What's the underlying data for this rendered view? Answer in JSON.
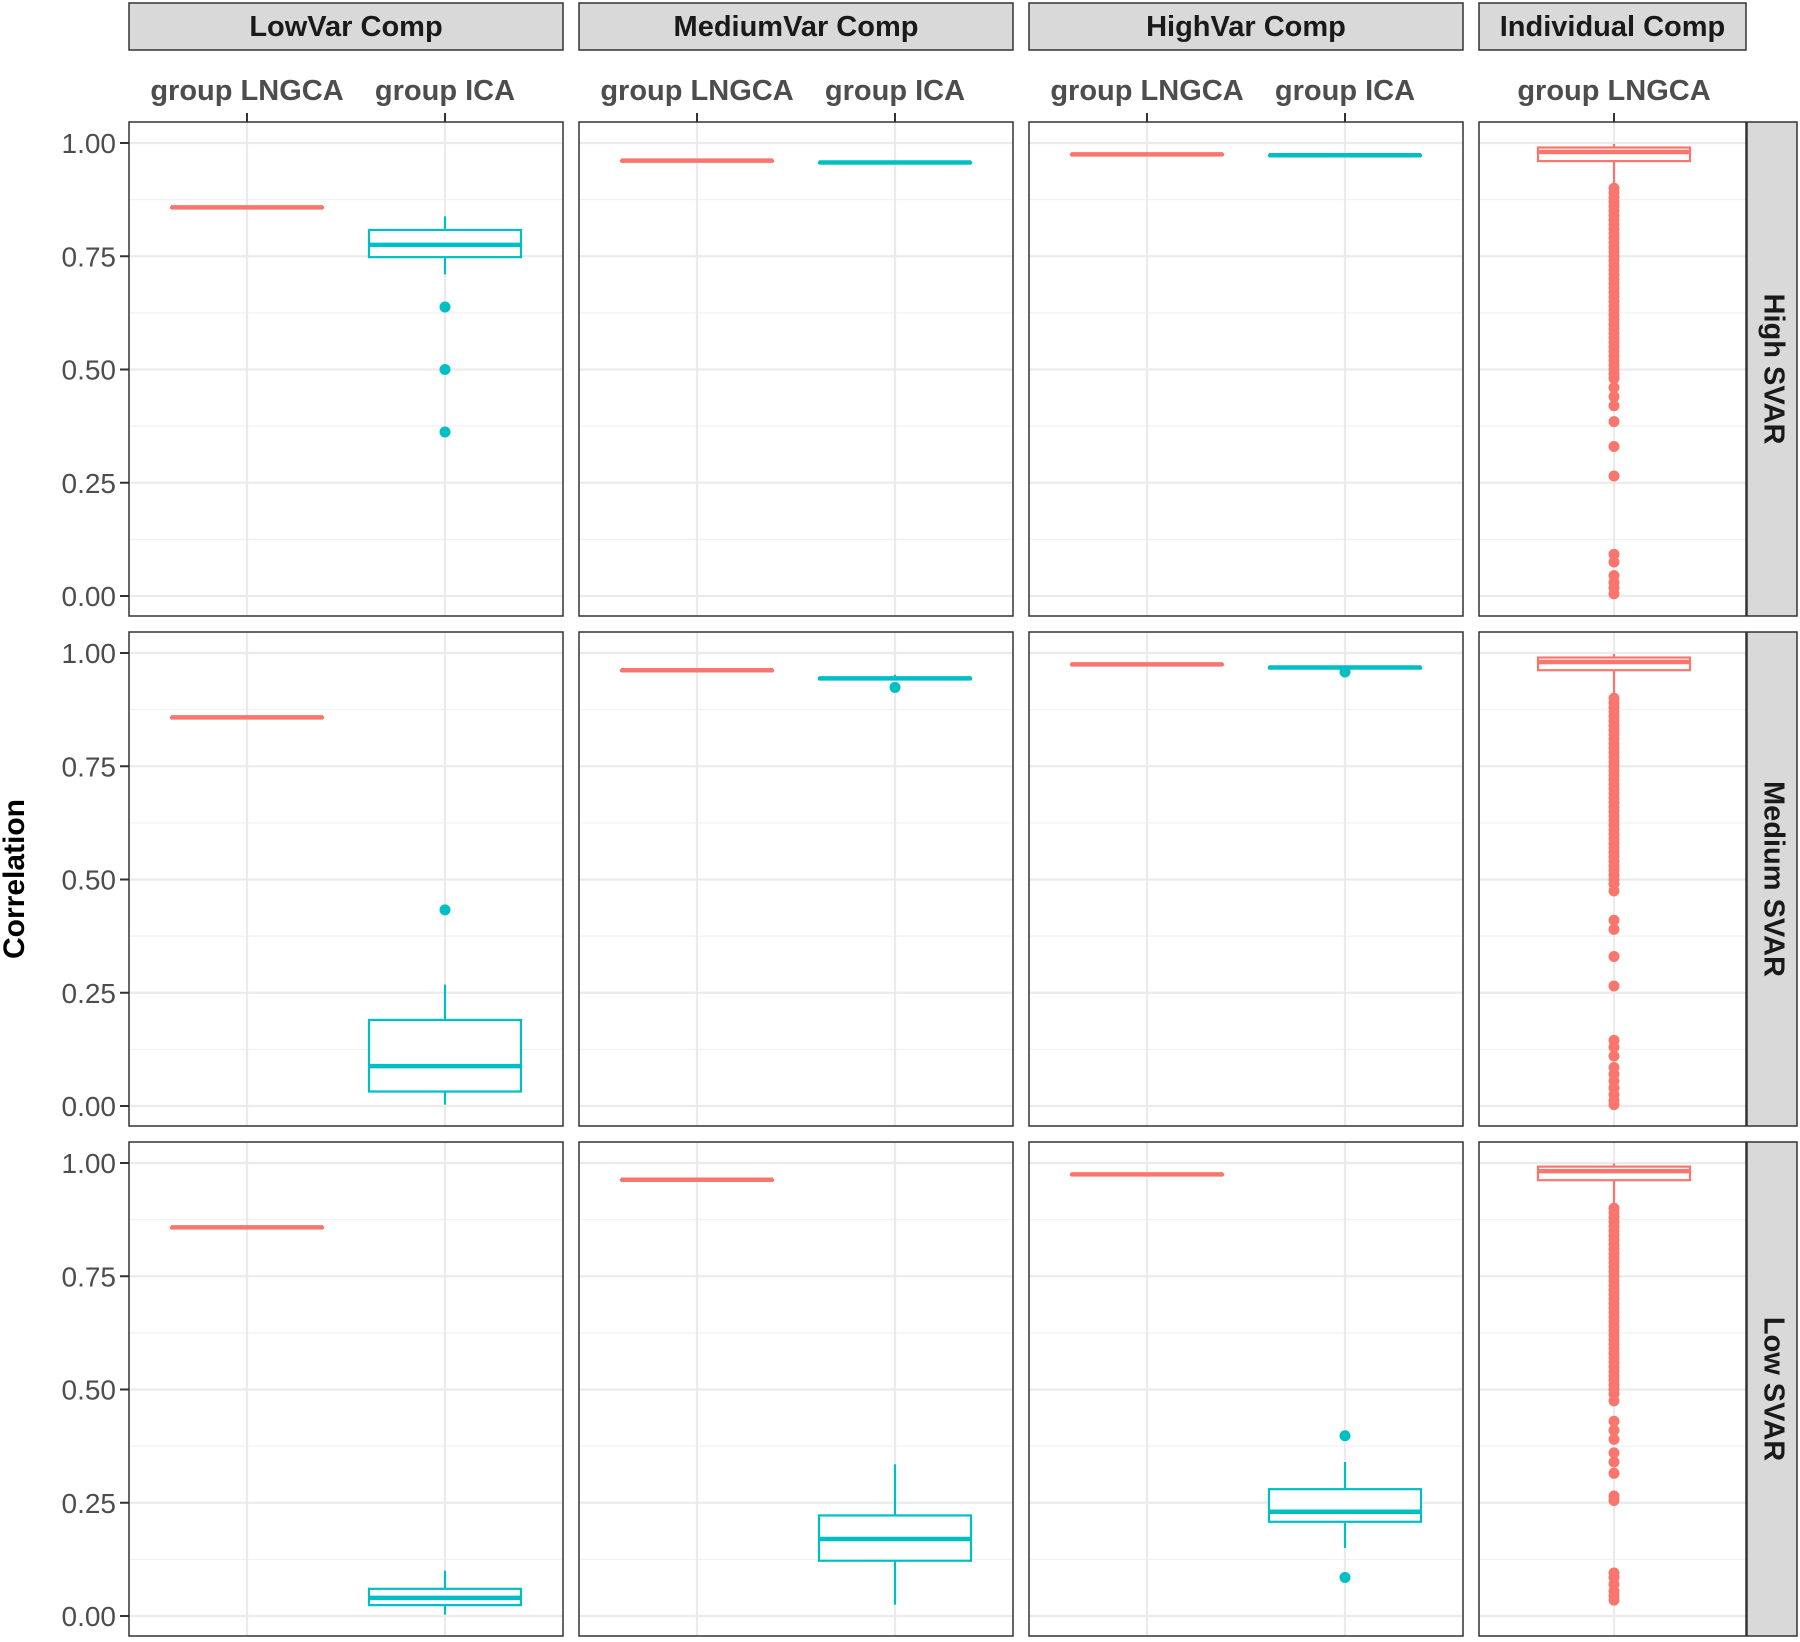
{
  "chart_data": {
    "type": "boxplot",
    "ylabel": "Correlation",
    "ylim": [
      0,
      1.04
    ],
    "yticks": [
      "0.00",
      "0.25",
      "0.50",
      "0.75",
      "1.00"
    ],
    "grid": true,
    "legend": "none",
    "colors": {
      "group LNGCA": "#F8766D",
      "group ICA": "#00BFC4"
    },
    "column_facets": [
      {
        "label": "LowVar Comp",
        "categories": [
          "group LNGCA",
          "group ICA"
        ]
      },
      {
        "label": "MediumVar Comp",
        "categories": [
          "group LNGCA",
          "group ICA"
        ]
      },
      {
        "label": "HighVar Comp",
        "categories": [
          "group LNGCA",
          "group ICA"
        ]
      },
      {
        "label": "Individual Comp",
        "categories": [
          "group LNGCA"
        ]
      }
    ],
    "row_facets": [
      "High SVAR",
      "Medium SVAR",
      "Low SVAR"
    ],
    "panels": [
      {
        "row": 0,
        "col": 0,
        "boxes": [
          {
            "category": "group LNGCA",
            "min": 0.858,
            "q1": 0.858,
            "median": 0.858,
            "q3": 0.858,
            "max": 0.858,
            "outliers": []
          },
          {
            "category": "group ICA",
            "min": 0.71,
            "q1": 0.748,
            "median": 0.775,
            "q3": 0.808,
            "max": 0.838,
            "outliers": [
              0.638,
              0.5,
              0.362
            ]
          }
        ]
      },
      {
        "row": 0,
        "col": 1,
        "boxes": [
          {
            "category": "group LNGCA",
            "min": 0.961,
            "q1": 0.961,
            "median": 0.961,
            "q3": 0.961,
            "max": 0.961,
            "outliers": []
          },
          {
            "category": "group ICA",
            "min": 0.957,
            "q1": 0.957,
            "median": 0.957,
            "q3": 0.957,
            "max": 0.957,
            "outliers": []
          }
        ]
      },
      {
        "row": 0,
        "col": 2,
        "boxes": [
          {
            "category": "group LNGCA",
            "min": 0.975,
            "q1": 0.975,
            "median": 0.975,
            "q3": 0.975,
            "max": 0.975,
            "outliers": []
          },
          {
            "category": "group ICA",
            "min": 0.973,
            "q1": 0.973,
            "median": 0.973,
            "q3": 0.973,
            "max": 0.973,
            "outliers": []
          }
        ]
      },
      {
        "row": 0,
        "col": 3,
        "boxes": [
          {
            "category": "group LNGCA",
            "min": 0.91,
            "q1": 0.96,
            "median": 0.98,
            "q3": 0.99,
            "max": 0.998,
            "outliers": [
              0.9,
              0.89,
              0.88,
              0.87,
              0.86,
              0.85,
              0.84,
              0.83,
              0.82,
              0.81,
              0.8,
              0.79,
              0.78,
              0.77,
              0.76,
              0.75,
              0.74,
              0.73,
              0.72,
              0.71,
              0.7,
              0.69,
              0.68,
              0.67,
              0.66,
              0.65,
              0.64,
              0.63,
              0.62,
              0.61,
              0.6,
              0.59,
              0.58,
              0.57,
              0.56,
              0.55,
              0.54,
              0.53,
              0.52,
              0.51,
              0.5,
              0.49,
              0.48,
              0.46,
              0.44,
              0.42,
              0.385,
              0.33,
              0.265,
              0.092,
              0.075,
              0.045,
              0.03,
              0.018,
              0.005
            ]
          }
        ]
      },
      {
        "row": 1,
        "col": 0,
        "boxes": [
          {
            "category": "group LNGCA",
            "min": 0.858,
            "q1": 0.858,
            "median": 0.858,
            "q3": 0.858,
            "max": 0.858,
            "outliers": []
          },
          {
            "category": "group ICA",
            "min": 0.003,
            "q1": 0.032,
            "median": 0.088,
            "q3": 0.19,
            "max": 0.268,
            "outliers": [
              0.433
            ]
          }
        ]
      },
      {
        "row": 1,
        "col": 1,
        "boxes": [
          {
            "category": "group LNGCA",
            "min": 0.962,
            "q1": 0.962,
            "median": 0.962,
            "q3": 0.962,
            "max": 0.962,
            "outliers": []
          },
          {
            "category": "group ICA",
            "min": 0.942,
            "q1": 0.942,
            "median": 0.944,
            "q3": 0.945,
            "max": 0.952,
            "outliers": [
              0.924
            ]
          }
        ]
      },
      {
        "row": 1,
        "col": 2,
        "boxes": [
          {
            "category": "group LNGCA",
            "min": 0.975,
            "q1": 0.975,
            "median": 0.975,
            "q3": 0.975,
            "max": 0.975,
            "outliers": []
          },
          {
            "category": "group ICA",
            "min": 0.966,
            "q1": 0.966,
            "median": 0.968,
            "q3": 0.969,
            "max": 0.972,
            "outliers": [
              0.958
            ]
          }
        ]
      },
      {
        "row": 1,
        "col": 3,
        "boxes": [
          {
            "category": "group LNGCA",
            "min": 0.91,
            "q1": 0.962,
            "median": 0.98,
            "q3": 0.99,
            "max": 0.998,
            "outliers": [
              0.9,
              0.89,
              0.88,
              0.87,
              0.86,
              0.85,
              0.84,
              0.83,
              0.82,
              0.81,
              0.8,
              0.79,
              0.78,
              0.77,
              0.76,
              0.75,
              0.74,
              0.73,
              0.72,
              0.71,
              0.7,
              0.69,
              0.68,
              0.67,
              0.66,
              0.65,
              0.64,
              0.63,
              0.62,
              0.61,
              0.6,
              0.59,
              0.58,
              0.57,
              0.56,
              0.55,
              0.54,
              0.53,
              0.52,
              0.51,
              0.5,
              0.49,
              0.475,
              0.41,
              0.39,
              0.33,
              0.265,
              0.145,
              0.13,
              0.11,
              0.085,
              0.07,
              0.055,
              0.04,
              0.025,
              0.012,
              0.003
            ]
          }
        ]
      },
      {
        "row": 2,
        "col": 0,
        "boxes": [
          {
            "category": "group LNGCA",
            "min": 0.858,
            "q1": 0.858,
            "median": 0.858,
            "q3": 0.858,
            "max": 0.858,
            "outliers": []
          },
          {
            "category": "group ICA",
            "min": 0.003,
            "q1": 0.024,
            "median": 0.04,
            "q3": 0.06,
            "max": 0.1,
            "outliers": []
          }
        ]
      },
      {
        "row": 2,
        "col": 1,
        "boxes": [
          {
            "category": "group LNGCA",
            "min": 0.963,
            "q1": 0.963,
            "median": 0.963,
            "q3": 0.963,
            "max": 0.963,
            "outliers": []
          },
          {
            "category": "group ICA",
            "min": 0.025,
            "q1": 0.122,
            "median": 0.17,
            "q3": 0.222,
            "max": 0.335,
            "outliers": []
          }
        ]
      },
      {
        "row": 2,
        "col": 2,
        "boxes": [
          {
            "category": "group LNGCA",
            "min": 0.975,
            "q1": 0.975,
            "median": 0.975,
            "q3": 0.975,
            "max": 0.975,
            "outliers": []
          },
          {
            "category": "group ICA",
            "min": 0.15,
            "q1": 0.208,
            "median": 0.23,
            "q3": 0.28,
            "max": 0.34,
            "outliers": [
              0.398,
              0.085
            ]
          }
        ]
      },
      {
        "row": 2,
        "col": 3,
        "boxes": [
          {
            "category": "group LNGCA",
            "min": 0.91,
            "q1": 0.962,
            "median": 0.982,
            "q3": 0.992,
            "max": 0.999,
            "outliers": [
              0.9,
              0.89,
              0.88,
              0.87,
              0.86,
              0.85,
              0.84,
              0.83,
              0.82,
              0.81,
              0.8,
              0.79,
              0.78,
              0.77,
              0.76,
              0.75,
              0.74,
              0.73,
              0.72,
              0.71,
              0.7,
              0.69,
              0.68,
              0.67,
              0.66,
              0.65,
              0.64,
              0.63,
              0.62,
              0.61,
              0.6,
              0.59,
              0.58,
              0.57,
              0.56,
              0.55,
              0.54,
              0.53,
              0.52,
              0.51,
              0.5,
              0.49,
              0.475,
              0.43,
              0.41,
              0.39,
              0.36,
              0.34,
              0.315,
              0.265,
              0.255,
              0.095,
              0.085,
              0.07,
              0.055,
              0.045,
              0.035
            ]
          }
        ]
      }
    ]
  }
}
